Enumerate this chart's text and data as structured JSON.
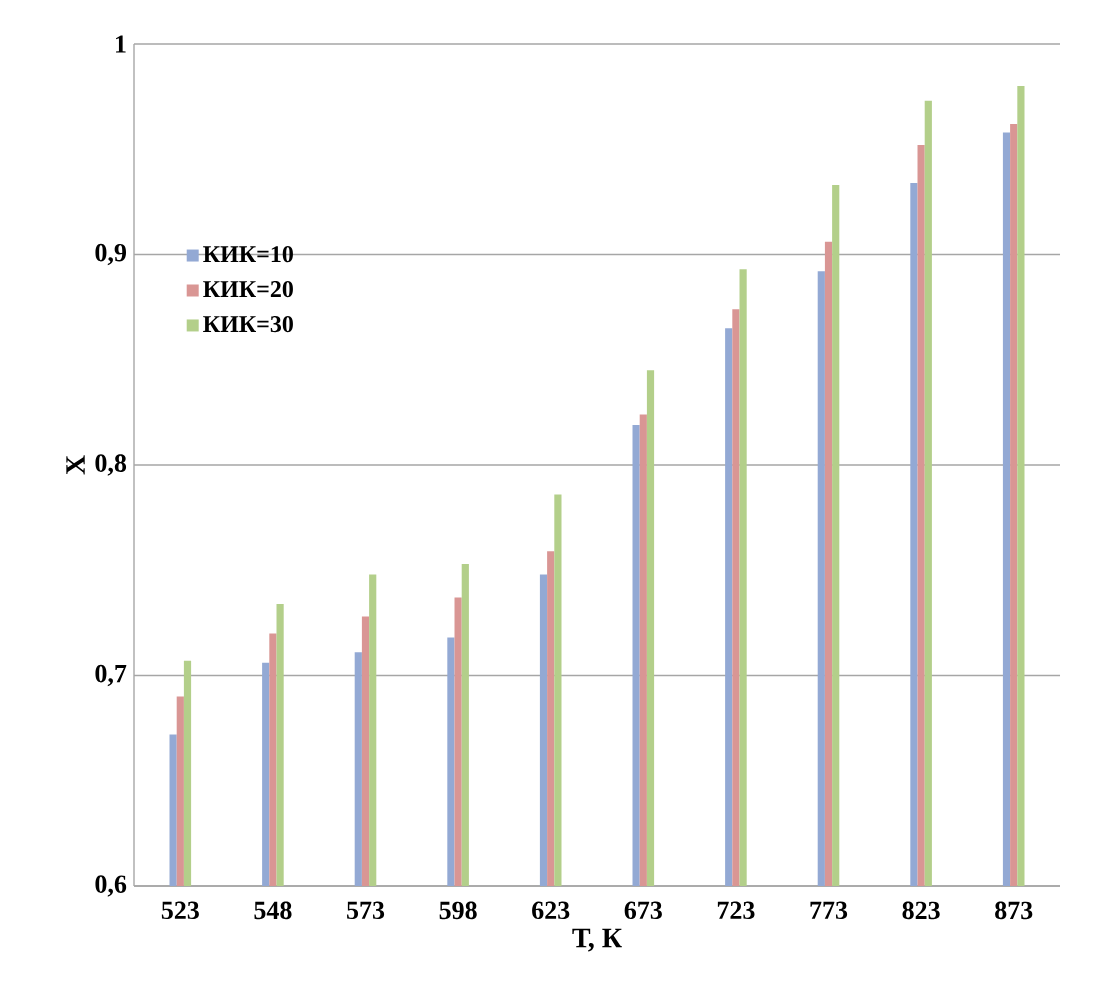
{
  "chart_data": {
    "type": "bar",
    "xlabel": "Т, К",
    "ylabel": "X",
    "categories": [
      "523",
      "548",
      "573",
      "598",
      "623",
      "673",
      "723",
      "773",
      "823",
      "873"
    ],
    "series": [
      {
        "name": "КИК=10",
        "color": "#93a9d4",
        "values": [
          0.672,
          0.706,
          0.711,
          0.718,
          0.748,
          0.819,
          0.865,
          0.892,
          0.934,
          0.958
        ]
      },
      {
        "name": "КИК=20",
        "color": "#d99694",
        "values": [
          0.69,
          0.72,
          0.728,
          0.737,
          0.759,
          0.824,
          0.874,
          0.906,
          0.952,
          0.962
        ]
      },
      {
        "name": "КИК=30",
        "color": "#b3cf8a",
        "values": [
          0.707,
          0.734,
          0.748,
          0.753,
          0.786,
          0.845,
          0.893,
          0.933,
          0.973,
          0.98
        ]
      }
    ],
    "ylim": [
      0.6,
      1.0
    ],
    "yticks": [
      {
        "value": 0.6,
        "label": "0,6"
      },
      {
        "value": 0.7,
        "label": "0,7"
      },
      {
        "value": 0.8,
        "label": "0,8"
      },
      {
        "value": 0.9,
        "label": "0,9"
      },
      {
        "value": 1.0,
        "label": "1"
      }
    ],
    "grid": "y",
    "legend": "top left"
  }
}
